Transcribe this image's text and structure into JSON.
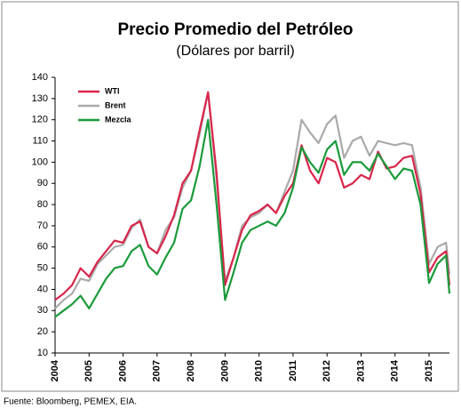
{
  "chart_data": {
    "type": "line",
    "title": "Precio Promedio del Petróleo",
    "subtitle": "(Dólares por barril)",
    "source": "Fuente: Bloomberg,  PEMEX, EIA.",
    "x": [
      2004.0,
      2004.25,
      2004.5,
      2004.75,
      2005.0,
      2005.25,
      2005.5,
      2005.75,
      2006.0,
      2006.25,
      2006.5,
      2006.75,
      2007.0,
      2007.25,
      2007.5,
      2007.75,
      2008.0,
      2008.25,
      2008.5,
      2008.75,
      2009.0,
      2009.25,
      2009.5,
      2009.75,
      2010.0,
      2010.25,
      2010.5,
      2010.75,
      2011.0,
      2011.25,
      2011.5,
      2011.75,
      2012.0,
      2012.25,
      2012.5,
      2012.75,
      2013.0,
      2013.25,
      2013.5,
      2013.75,
      2014.0,
      2014.25,
      2014.5,
      2014.75,
      2015.0,
      2015.25,
      2015.5,
      2015.6
    ],
    "series": [
      {
        "name": "WTI",
        "color": "#d9254a",
        "values": [
          35,
          38,
          42,
          50,
          46,
          53,
          58,
          63,
          62,
          70,
          72,
          60,
          57,
          65,
          75,
          90,
          96,
          115,
          133,
          95,
          42,
          55,
          68,
          75,
          77,
          80,
          76,
          84,
          90,
          108,
          96,
          90,
          102,
          100,
          88,
          90,
          94,
          92,
          105,
          97,
          98,
          102,
          103,
          85,
          48,
          55,
          58,
          42
        ]
      },
      {
        "name": "Brent",
        "color": "#aaaaaa",
        "values": [
          31,
          35,
          38,
          45,
          44,
          52,
          56,
          60,
          61,
          69,
          73,
          60,
          57,
          68,
          74,
          88,
          96,
          113,
          133,
          92,
          44,
          55,
          70,
          74,
          76,
          80,
          76,
          86,
          96,
          120,
          114,
          109,
          118,
          122,
          102,
          110,
          112,
          103,
          110,
          109,
          108,
          109,
          108,
          88,
          52,
          60,
          62,
          47
        ]
      },
      {
        "name": "Mezcla",
        "color": "#1a9a3a",
        "values": [
          27,
          30,
          33,
          37,
          31,
          38,
          45,
          50,
          51,
          58,
          61,
          51,
          47,
          55,
          62,
          78,
          82,
          98,
          120,
          80,
          35,
          48,
          62,
          68,
          70,
          72,
          70,
          76,
          88,
          107,
          100,
          95,
          106,
          110,
          94,
          100,
          100,
          96,
          104,
          98,
          92,
          97,
          96,
          80,
          43,
          52,
          56,
          38
        ]
      }
    ],
    "xlim": [
      2004,
      2015.6
    ],
    "xticks": [
      2004,
      2005,
      2006,
      2007,
      2008,
      2009,
      2010,
      2011,
      2012,
      2013,
      2014,
      2015
    ],
    "ylim": [
      10,
      140
    ],
    "yticks": [
      10,
      20,
      30,
      40,
      50,
      60,
      70,
      80,
      90,
      100,
      110,
      120,
      130,
      140
    ],
    "legend": "upper left"
  }
}
